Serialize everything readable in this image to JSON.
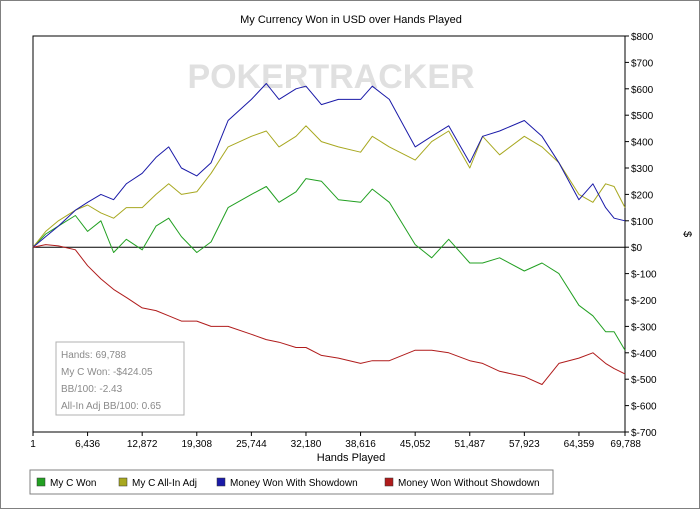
{
  "chart_data": {
    "type": "line",
    "title": "My Currency Won in USD over Hands Played",
    "xlabel": "Hands Played",
    "ylabel": "$",
    "xlim": [
      1,
      69788
    ],
    "ylim": [
      -700,
      800
    ],
    "x_ticks": [
      "1",
      "6,436",
      "12,872",
      "19,308",
      "25,744",
      "32,180",
      "38,616",
      "45,052",
      "51,487",
      "57,923",
      "64,359",
      "69,788"
    ],
    "y_ticks": [
      "$800",
      "$700",
      "$600",
      "$500",
      "$400",
      "$300",
      "$200",
      "$100",
      "$0",
      "$-100",
      "$-200",
      "$-300",
      "$-400",
      "$-500",
      "$-600",
      "$-700"
    ],
    "watermark": "POKERTRACKER",
    "legend_position": "bottom",
    "series": [
      {
        "name": "My C Won",
        "color": "#22a022",
        "x": [
          1,
          1500,
          3000,
          5000,
          6436,
          8000,
          9500,
          11000,
          12872,
          14500,
          16000,
          17500,
          19308,
          21000,
          23000,
          25744,
          27500,
          29000,
          31000,
          32180,
          34000,
          36000,
          38616,
          40000,
          42000,
          45052,
          47000,
          49000,
          51487,
          53000,
          55000,
          57923,
          60000,
          62000,
          64359,
          66000,
          67500,
          68500,
          69788
        ],
        "y": [
          0,
          50,
          80,
          120,
          60,
          100,
          -20,
          30,
          -10,
          80,
          110,
          40,
          -20,
          20,
          150,
          200,
          230,
          170,
          210,
          260,
          250,
          180,
          170,
          220,
          170,
          10,
          -40,
          30,
          -60,
          -60,
          -40,
          -90,
          -60,
          -100,
          -220,
          -260,
          -320,
          -320,
          -390
        ]
      },
      {
        "name": "My C All-In Adj",
        "color": "#a8a820",
        "x": [
          1,
          1500,
          3000,
          5000,
          6436,
          8000,
          9500,
          11000,
          12872,
          14500,
          16000,
          17500,
          19308,
          21000,
          23000,
          25744,
          27500,
          29000,
          31000,
          32180,
          34000,
          36000,
          38616,
          40000,
          42000,
          45052,
          47000,
          49000,
          51487,
          53000,
          55000,
          57923,
          60000,
          62000,
          64359,
          66000,
          67500,
          68500,
          69788
        ],
        "y": [
          0,
          60,
          100,
          140,
          160,
          130,
          110,
          150,
          150,
          200,
          240,
          200,
          210,
          280,
          380,
          420,
          440,
          380,
          420,
          460,
          400,
          380,
          360,
          420,
          380,
          330,
          400,
          440,
          300,
          420,
          350,
          420,
          380,
          320,
          200,
          170,
          240,
          230,
          150
        ]
      },
      {
        "name": "Money Won With Showdown",
        "color": "#1a1aa8",
        "x": [
          1,
          1500,
          3000,
          5000,
          6436,
          8000,
          9500,
          11000,
          12872,
          14500,
          16000,
          17500,
          19308,
          21000,
          23000,
          25744,
          27500,
          29000,
          31000,
          32180,
          34000,
          36000,
          38616,
          40000,
          42000,
          45052,
          47000,
          49000,
          51487,
          53000,
          55000,
          57923,
          60000,
          62000,
          64359,
          66000,
          67500,
          68500,
          69788
        ],
        "y": [
          0,
          40,
          80,
          140,
          170,
          200,
          180,
          240,
          280,
          340,
          380,
          300,
          270,
          320,
          480,
          560,
          620,
          560,
          600,
          610,
          540,
          560,
          560,
          610,
          560,
          380,
          420,
          460,
          320,
          420,
          440,
          480,
          420,
          320,
          180,
          240,
          150,
          110,
          100
        ]
      },
      {
        "name": "Money Won Without Showdown",
        "color": "#b01c1c",
        "x": [
          1,
          1500,
          3000,
          5000,
          6436,
          8000,
          9500,
          11000,
          12872,
          14500,
          16000,
          17500,
          19308,
          21000,
          23000,
          25744,
          27500,
          29000,
          31000,
          32180,
          34000,
          36000,
          38616,
          40000,
          42000,
          45052,
          47000,
          49000,
          51487,
          53000,
          55000,
          57923,
          60000,
          62000,
          64359,
          66000,
          67500,
          68500,
          69788
        ],
        "y": [
          0,
          10,
          5,
          -10,
          -70,
          -120,
          -160,
          -190,
          -230,
          -240,
          -260,
          -280,
          -280,
          -300,
          -300,
          -330,
          -350,
          -360,
          -380,
          -380,
          -410,
          -420,
          -440,
          -430,
          -430,
          -390,
          -390,
          -400,
          -430,
          -440,
          -470,
          -490,
          -520,
          -440,
          -420,
          -400,
          -440,
          -460,
          -480
        ]
      }
    ]
  },
  "stats_box": {
    "hands": "Hands: 69,788",
    "won": "My C Won: -$424.05",
    "bb100": "BB/100: -2.43",
    "allin_bb100": "All-In Adj BB/100: 0.65"
  }
}
